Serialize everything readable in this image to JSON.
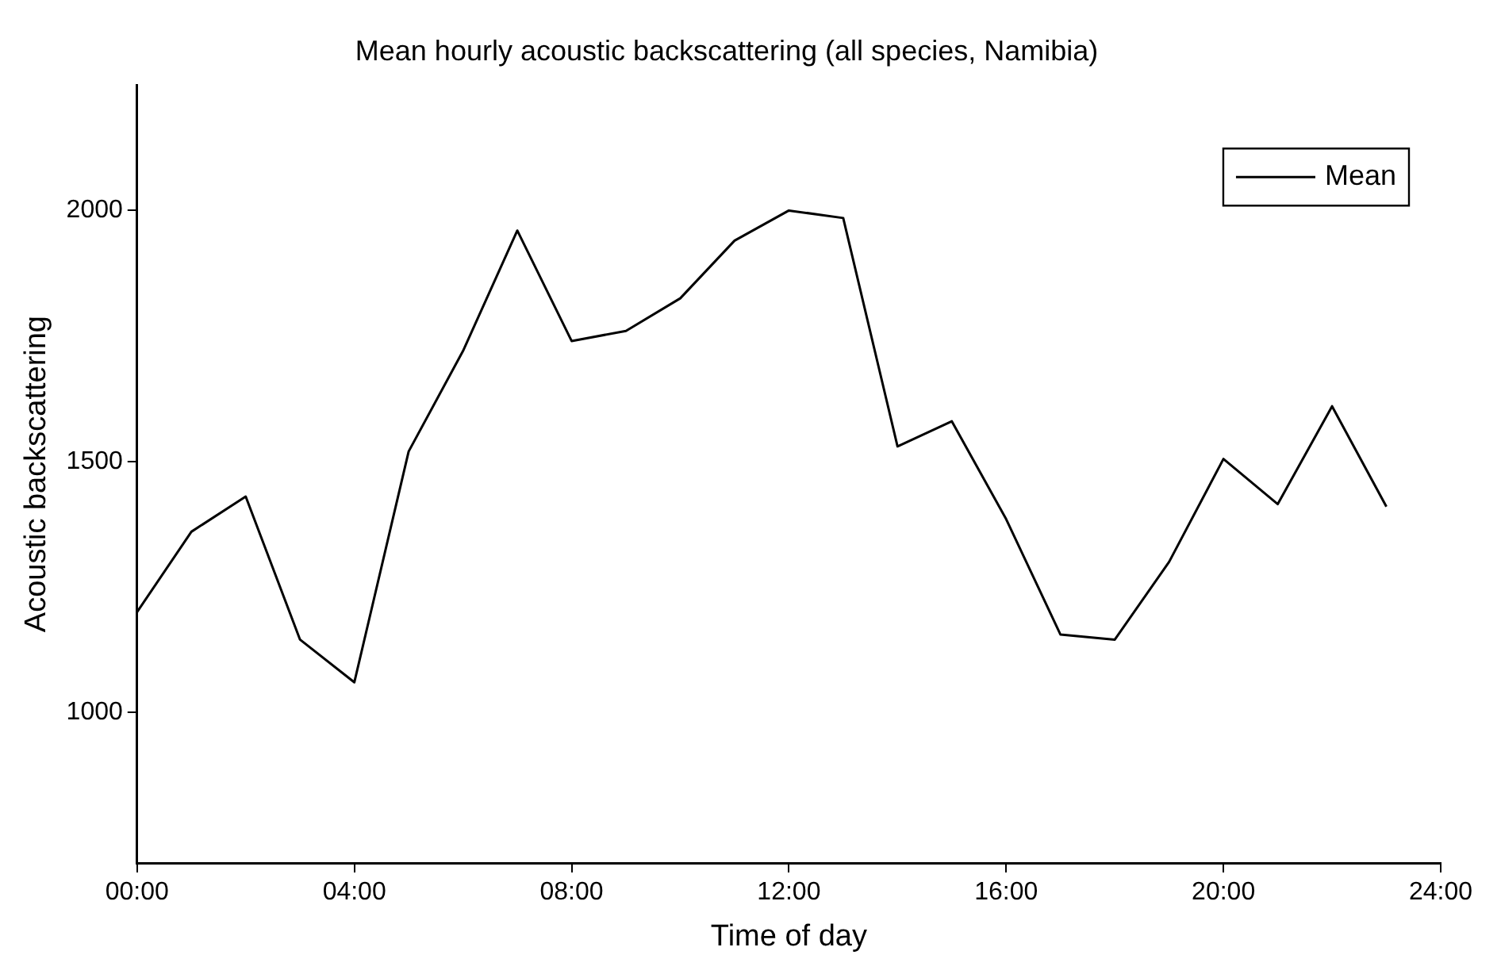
{
  "chart_data": {
    "type": "line",
    "title": "Mean hourly acoustic backscattering (all species, Namibia)",
    "xlabel": "Time of day",
    "ylabel": "Acoustic backscattering",
    "x": [
      0,
      1,
      2,
      3,
      4,
      5,
      6,
      7,
      8,
      9,
      10,
      11,
      12,
      13,
      14,
      15,
      16,
      17,
      18,
      19,
      20,
      21,
      22,
      23
    ],
    "series": [
      {
        "name": "Mean",
        "color": "#000000",
        "values": [
          1200,
          1360,
          1430,
          1145,
          1060,
          1520,
          1720,
          1960,
          1740,
          1760,
          1825,
          1940,
          2000,
          1985,
          1530,
          1580,
          1385,
          1155,
          1145,
          1300,
          1505,
          1415,
          1610,
          1410
        ]
      }
    ],
    "xlim": [
      0,
      24
    ],
    "xticks": [
      {
        "value": 0,
        "label": "00:00"
      },
      {
        "value": 4,
        "label": "04:00"
      },
      {
        "value": 8,
        "label": "08:00"
      },
      {
        "value": 12,
        "label": "12:00"
      },
      {
        "value": 16,
        "label": "16:00"
      },
      {
        "value": 20,
        "label": "20:00"
      },
      {
        "value": 24,
        "label": "24:00"
      }
    ],
    "ylim": [
      700,
      2250
    ],
    "yticks": [
      1000,
      1500,
      2000
    ],
    "grid": false,
    "legend": "top right",
    "marker": "none",
    "line_style": "solid"
  }
}
